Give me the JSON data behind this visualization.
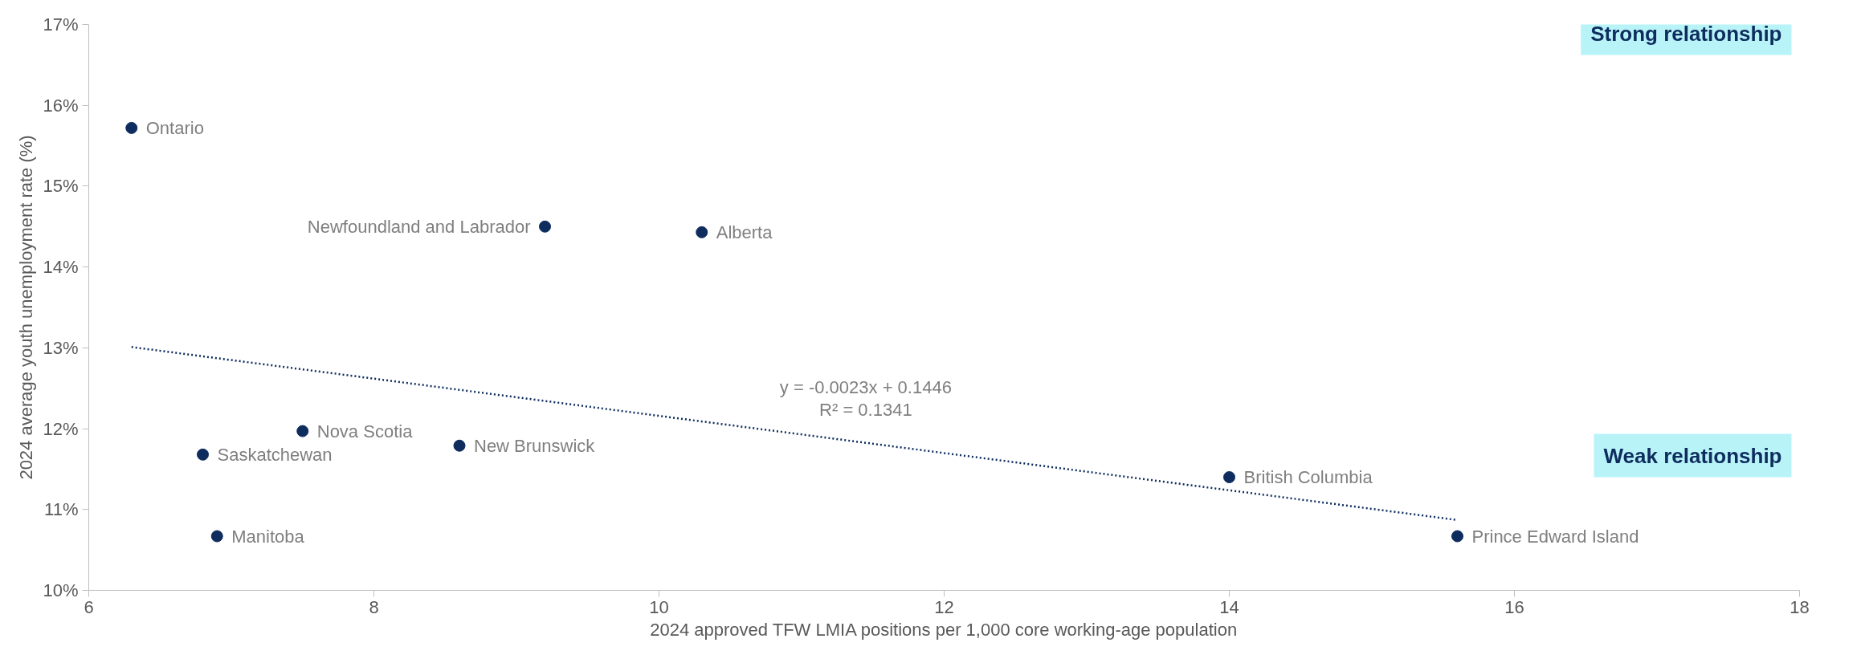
{
  "chart_data": {
    "type": "scatter",
    "xlabel": "2024 approved TFW LMIA positions per 1,000 core working-age population",
    "ylabel": "2024 average youth unemployment rate (%)",
    "xlim": [
      6,
      18
    ],
    "xticks": [
      6,
      8,
      10,
      12,
      14,
      16,
      18
    ],
    "ylim": [
      10,
      17
    ],
    "yticks": [
      {
        "value": 10,
        "label": "10%"
      },
      {
        "value": 11,
        "label": "11%"
      },
      {
        "value": 12,
        "label": "12%"
      },
      {
        "value": 13,
        "label": "13%"
      },
      {
        "value": 14,
        "label": "14%"
      },
      {
        "value": 15,
        "label": "15%"
      },
      {
        "value": 16,
        "label": "16%"
      },
      {
        "value": 17,
        "label": "17%"
      }
    ],
    "grid": false,
    "marker": "circle",
    "series": [
      {
        "name": "Ontario",
        "color": "#0e2d5e",
        "x": [
          6.3
        ],
        "values": [
          15.72
        ]
      },
      {
        "name": "Newfoundland and Labrador",
        "color": "#0e2d5e",
        "x": [
          9.2
        ],
        "values": [
          14.5
        ]
      },
      {
        "name": "Alberta",
        "color": "#0e2d5e",
        "x": [
          10.3
        ],
        "values": [
          14.43
        ]
      },
      {
        "name": "Nova Scotia",
        "color": "#0e2d5e",
        "x": [
          7.5
        ],
        "values": [
          11.97
        ]
      },
      {
        "name": "Saskatchewan",
        "color": "#0e2d5e",
        "x": [
          6.8
        ],
        "values": [
          11.68
        ]
      },
      {
        "name": "New Brunswick",
        "color": "#0e2d5e",
        "x": [
          8.6
        ],
        "values": [
          11.79
        ]
      },
      {
        "name": "Manitoba",
        "color": "#0e2d5e",
        "x": [
          6.9
        ],
        "values": [
          10.67
        ]
      },
      {
        "name": "British Columbia",
        "color": "#0e2d5e",
        "x": [
          14.0
        ],
        "values": [
          11.4
        ]
      },
      {
        "name": "Prince Edward Island",
        "color": "#0e2d5e",
        "x": [
          15.6
        ],
        "values": [
          10.67
        ]
      },
      {
        "type": "line",
        "marker": "none",
        "line_style": "dotted",
        "color": "#0e2d5e",
        "x": [
          6.3,
          15.6
        ],
        "values": [
          13.01,
          10.87
        ]
      }
    ],
    "annotations": [
      "y = -0.0023x + 0.1446",
      "R² = 0.1341",
      "Strong relationship",
      "Weak relationship"
    ]
  }
}
